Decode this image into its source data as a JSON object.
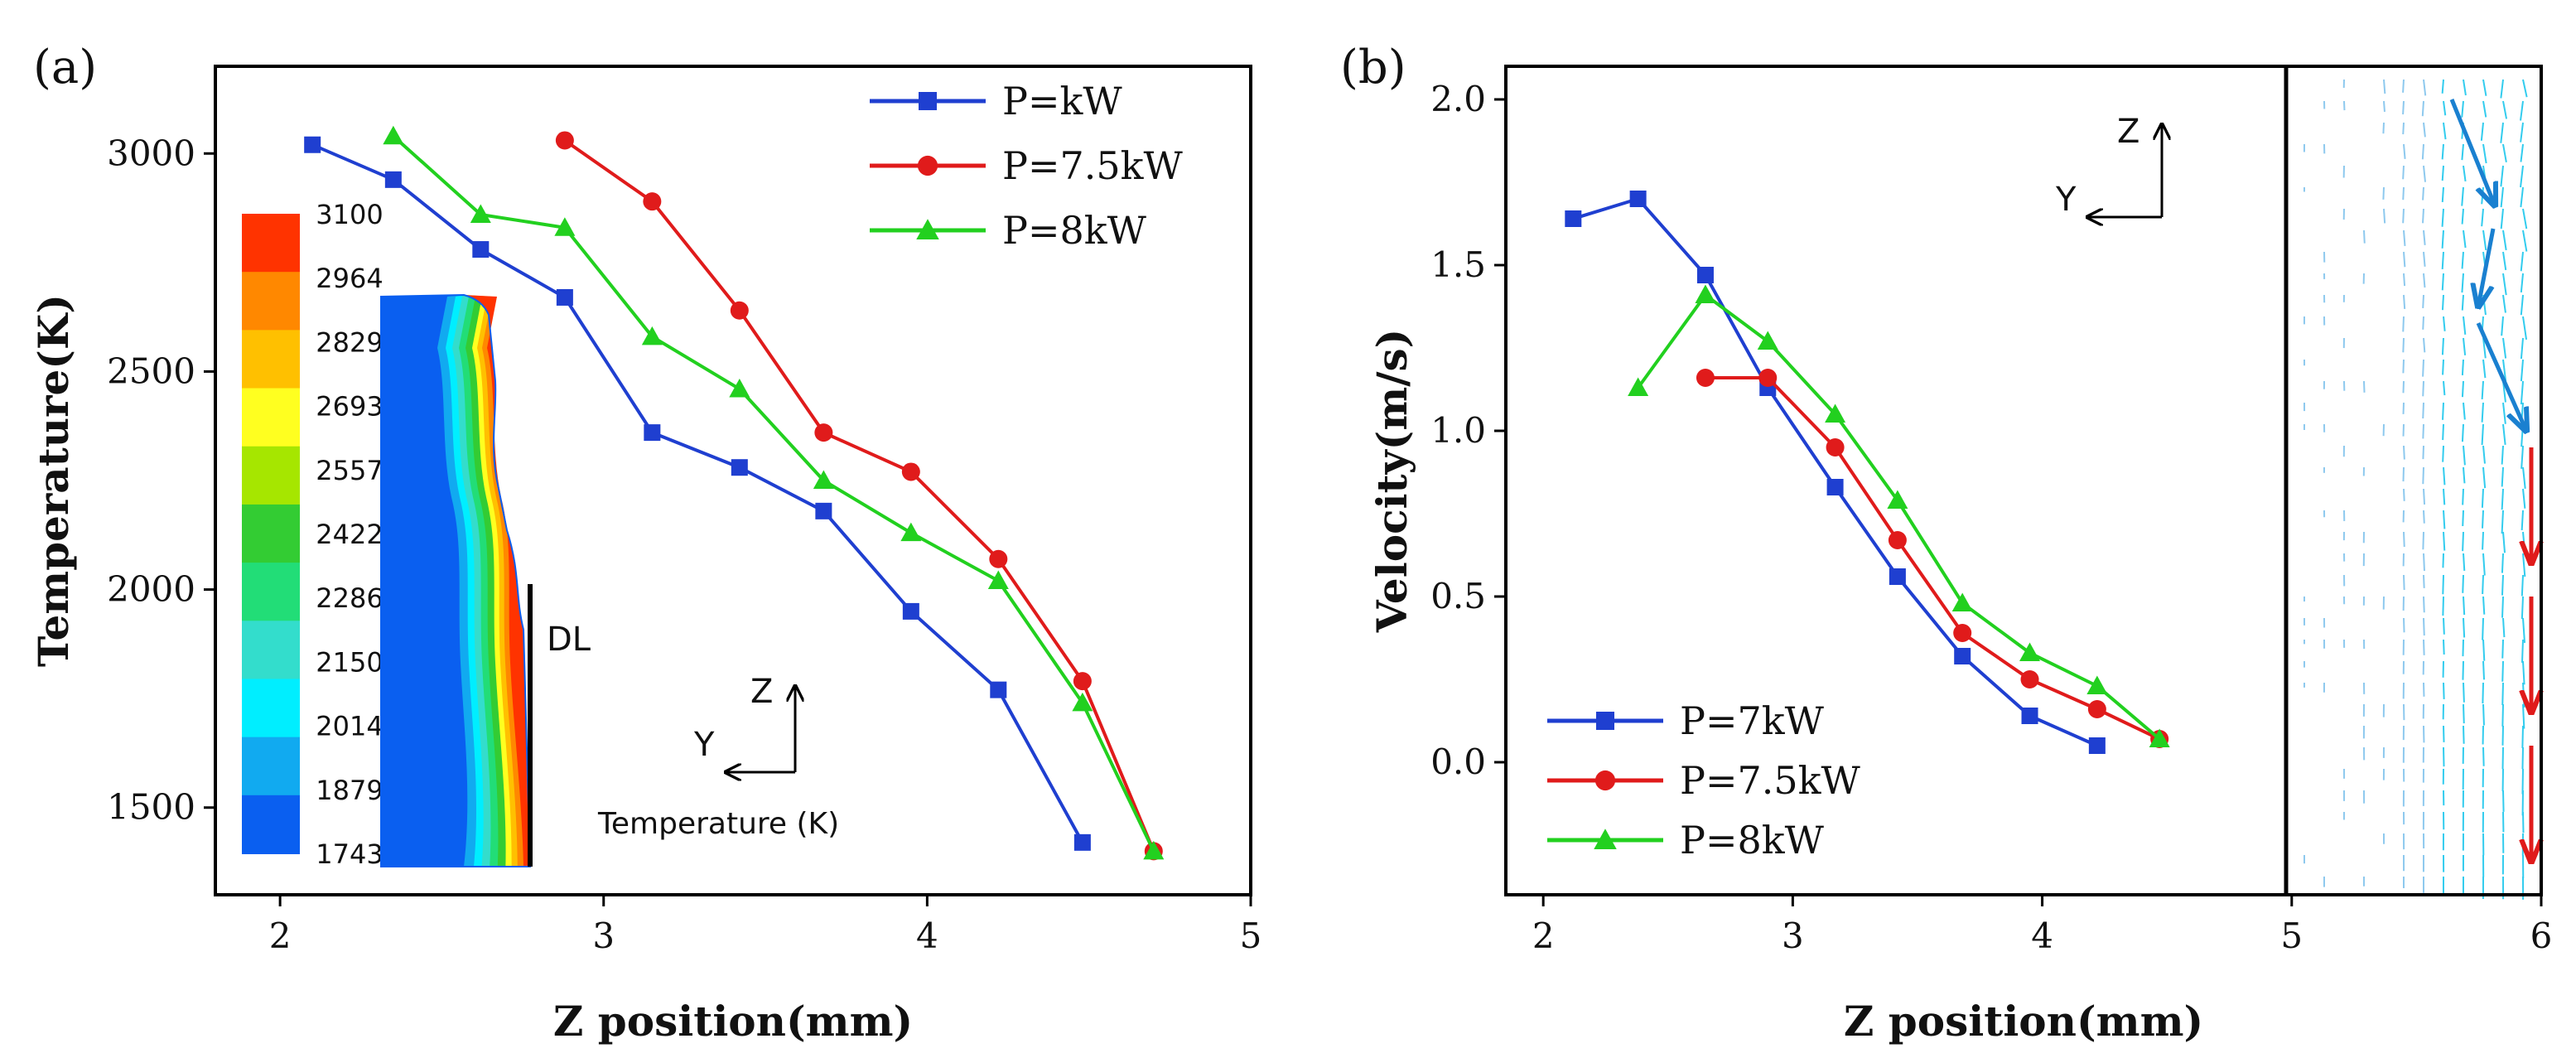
{
  "panels": {
    "a": {
      "label": "(a)"
    },
    "b": {
      "label": "(b)"
    }
  },
  "colors": {
    "series_1": "#1f3fd0",
    "series_2": "#e01b1b",
    "series_3": "#22d01f",
    "frame": "#000000"
  },
  "chart_data": [
    {
      "id": "a",
      "type": "line",
      "xlabel": "Z position(mm)",
      "ylabel": "Temperature(K)",
      "xlim": [
        1.8,
        5.0
      ],
      "ylim": [
        1300,
        3200
      ],
      "xticks": [
        2,
        3,
        4,
        5
      ],
      "yticks": [
        1500,
        2000,
        2500,
        3000
      ],
      "legend_position": "top-right",
      "series": [
        {
          "name": "P=kW",
          "marker": "square",
          "x": [
            2.1,
            2.35,
            2.62,
            2.88,
            3.15,
            3.42,
            3.68,
            3.95,
            4.22,
            4.48
          ],
          "y": [
            3020,
            2940,
            2780,
            2670,
            2360,
            2280,
            2180,
            1950,
            1770,
            1420
          ]
        },
        {
          "name": "P=7.5kW",
          "marker": "circle",
          "x": [
            2.88,
            3.15,
            3.42,
            3.68,
            3.95,
            4.22,
            4.48,
            4.7
          ],
          "y": [
            3030,
            2890,
            2640,
            2360,
            2270,
            2070,
            1790,
            1400
          ]
        },
        {
          "name": "P=8kW",
          "marker": "triangle",
          "x": [
            2.35,
            2.62,
            2.88,
            3.15,
            3.42,
            3.68,
            3.95,
            4.22,
            4.48,
            4.7
          ],
          "y": [
            3040,
            2860,
            2830,
            2580,
            2460,
            2250,
            2130,
            2020,
            1740,
            1400
          ]
        }
      ],
      "colorbar": {
        "ticks": [
          "3100",
          "2964",
          "2829",
          "2693",
          "2557",
          "2422",
          "2286",
          "2150",
          "2014",
          "1879",
          "1743"
        ],
        "colors": [
          "#ff3300",
          "#ff8800",
          "#ffc000",
          "#ffff20",
          "#a6e600",
          "#33cc33",
          "#22dd77",
          "#33ddcc",
          "#00eeff",
          "#11aaf0",
          "#0a5ff0"
        ]
      },
      "annotations": {
        "dl": "DL",
        "axis_z": "Z",
        "axis_y": "Y",
        "inset_caption": "Temperature (K)"
      }
    },
    {
      "id": "b",
      "type": "line",
      "xlabel": "Z position(mm)",
      "ylabel": "Velocity(m/s)",
      "xlim": [
        1.85,
        6.0
      ],
      "ylim": [
        -0.4,
        2.1
      ],
      "xticks": [
        2,
        3,
        4,
        5,
        6
      ],
      "yticks": [
        0.0,
        0.5,
        1.0,
        1.5,
        2.0
      ],
      "legend_position": "bottom-left",
      "series": [
        {
          "name": "P=7kW",
          "marker": "square",
          "x": [
            2.12,
            2.38,
            2.65,
            2.9,
            3.17,
            3.42,
            3.68,
            3.95,
            4.22
          ],
          "y": [
            1.64,
            1.7,
            1.47,
            1.13,
            0.83,
            0.56,
            0.32,
            0.14,
            0.05
          ]
        },
        {
          "name": "P=7.5kW",
          "marker": "circle",
          "x": [
            2.65,
            2.9,
            3.17,
            3.42,
            3.68,
            3.95,
            4.22,
            4.47
          ],
          "y": [
            1.16,
            1.16,
            0.95,
            0.67,
            0.39,
            0.25,
            0.16,
            0.07
          ]
        },
        {
          "name": "P=8kW",
          "marker": "triangle",
          "x": [
            2.38,
            2.65,
            2.9,
            3.17,
            3.42,
            3.68,
            3.95,
            4.22,
            4.47
          ],
          "y": [
            1.13,
            1.41,
            1.27,
            1.05,
            0.79,
            0.48,
            0.33,
            0.23,
            0.07
          ]
        }
      ],
      "annotations": {
        "axis_z": "Z",
        "axis_y": "Y"
      }
    }
  ]
}
